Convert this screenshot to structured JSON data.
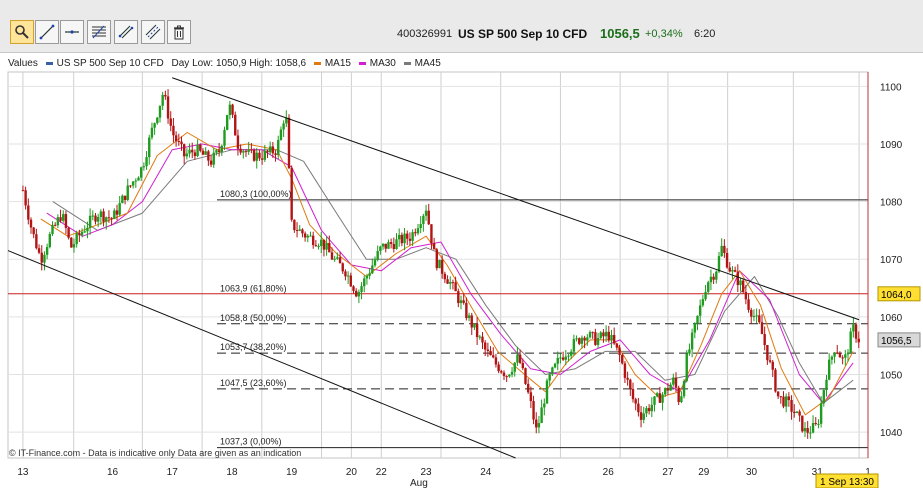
{
  "toolbar": {
    "buttons": [
      "zoom",
      "trend-line",
      "horizontal-line",
      "fibonacci-retracement",
      "channel",
      "parallel-lines",
      "delete"
    ]
  },
  "header": {
    "id": "400326991",
    "instrument": "US SP 500 Sep 10 CFD",
    "price": "1056,5",
    "change": "+0,34%",
    "time": "6:20",
    "price_color": "#1a6e1a"
  },
  "legend": {
    "values_label": "Values",
    "series_label": "US SP 500 Sep 10 CFD",
    "day_range": "Day Low: 1050,9 High: 1058,6",
    "ma15": "MA15",
    "ma30": "MA30",
    "ma45": "MA45",
    "colors": {
      "series": "#3a5ea8",
      "ma15": "#e07a10",
      "ma30": "#d020d0",
      "ma45": "#7a7a7a"
    }
  },
  "footer": {
    "copyright": "© IT-Finance.com - Data is indicative only Data are given as an indication",
    "month_label": "Aug",
    "last_time_label": "1 Sep 13:30"
  },
  "chart_data": {
    "type": "candlestick",
    "y_ticks": [
      1040,
      1050,
      1060,
      1070,
      1080,
      1090,
      1100
    ],
    "ylim": [
      1035.5,
      1102.5
    ],
    "x_ticks": [
      "13",
      "16",
      "17",
      "18",
      "19",
      "20",
      "22",
      "23",
      "24",
      "25",
      "26",
      "27",
      "29",
      "30",
      "31",
      "1"
    ],
    "last_price_label": "1056,5",
    "level_label": "1064,0",
    "level_value": 1064.0,
    "fibonacci": [
      {
        "label": "1080,3 (100,00%)",
        "value": 1080.3
      },
      {
        "label": "1063,9 (61,80%)",
        "value": 1063.9
      },
      {
        "label": "1058,8 (50,00%)",
        "value": 1058.8
      },
      {
        "label": "1053,7 (38,20%)",
        "value": 1053.7
      },
      {
        "label": "1047,5 (23,60%)",
        "value": 1047.5
      },
      {
        "label": "1037,3 (0,00%)",
        "value": 1037.3
      }
    ],
    "price_path": [
      [
        13,
        1082
      ],
      [
        13.3,
        1075
      ],
      [
        13.6,
        1070
      ],
      [
        13.9,
        1074
      ],
      [
        14.3,
        1078
      ],
      [
        14.6,
        1072
      ],
      [
        15,
        1075
      ],
      [
        15.5,
        1078
      ],
      [
        16,
        1077
      ],
      [
        16.5,
        1082
      ],
      [
        17,
        1086
      ],
      [
        17.3,
        1092
      ],
      [
        17.7,
        1099
      ],
      [
        18,
        1092
      ],
      [
        18.4,
        1088
      ],
      [
        18.8,
        1089
      ],
      [
        19.3,
        1087
      ],
      [
        19.6,
        1089
      ],
      [
        19.9,
        1097
      ],
      [
        20.2,
        1090
      ],
      [
        20.6,
        1088
      ],
      [
        21,
        1088
      ],
      [
        21.5,
        1089
      ],
      [
        21.8,
        1096
      ],
      [
        22,
        1076
      ],
      [
        22.5,
        1074
      ],
      [
        23,
        1073
      ],
      [
        23.4,
        1070
      ],
      [
        23.8,
        1068
      ],
      [
        24.2,
        1064
      ],
      [
        24.6,
        1068
      ],
      [
        25,
        1072
      ],
      [
        25.5,
        1073
      ],
      [
        26,
        1074
      ],
      [
        26.5,
        1079
      ],
      [
        26.8,
        1070
      ],
      [
        27.3,
        1066
      ],
      [
        27.7,
        1062
      ],
      [
        28.1,
        1058
      ],
      [
        28.5,
        1054
      ],
      [
        28.8,
        1052
      ],
      [
        29.2,
        1050
      ],
      [
        29.6,
        1053
      ],
      [
        30,
        1045
      ],
      [
        30.2,
        1040
      ],
      [
        30.6,
        1049
      ],
      [
        31,
        1053
      ],
      [
        31.4,
        1055
      ],
      [
        31.8,
        1057
      ],
      [
        32.2,
        1056
      ],
      [
        32.6,
        1057
      ],
      [
        33,
        1053
      ],
      [
        33.4,
        1046
      ],
      [
        33.7,
        1043
      ],
      [
        34.1,
        1045
      ],
      [
        34.5,
        1047
      ],
      [
        34.8,
        1049
      ],
      [
        35,
        1045
      ],
      [
        35.2,
        1052
      ],
      [
        35.6,
        1060
      ],
      [
        35.9,
        1066
      ],
      [
        36.2,
        1068
      ],
      [
        36.4,
        1072
      ],
      [
        36.7,
        1068
      ],
      [
        37,
        1066
      ],
      [
        37.3,
        1062
      ],
      [
        37.7,
        1058
      ],
      [
        38,
        1052
      ],
      [
        38.3,
        1046
      ],
      [
        38.6,
        1045
      ],
      [
        38.9,
        1043
      ],
      [
        39.2,
        1040
      ],
      [
        39.6,
        1041
      ],
      [
        39.9,
        1050
      ],
      [
        40.2,
        1055
      ],
      [
        40.5,
        1052
      ],
      [
        40.8,
        1058
      ],
      [
        41,
        1056
      ]
    ],
    "ma15_path": [
      [
        13.6,
        1077
      ],
      [
        14.5,
        1074
      ],
      [
        15.5,
        1076
      ],
      [
        16.5,
        1078
      ],
      [
        17.5,
        1088
      ],
      [
        18.5,
        1092
      ],
      [
        19.5,
        1089
      ],
      [
        20.5,
        1090
      ],
      [
        21.5,
        1089
      ],
      [
        22,
        1084
      ],
      [
        22.6,
        1076
      ],
      [
        23.5,
        1071
      ],
      [
        24.5,
        1067
      ],
      [
        25.5,
        1071
      ],
      [
        26.5,
        1074
      ],
      [
        27.2,
        1069
      ],
      [
        28.1,
        1061
      ],
      [
        28.9,
        1054
      ],
      [
        29.8,
        1050
      ],
      [
        30.5,
        1047
      ],
      [
        31.2,
        1052
      ],
      [
        32,
        1056
      ],
      [
        32.8,
        1056
      ],
      [
        33.5,
        1050
      ],
      [
        34.3,
        1046
      ],
      [
        35,
        1047
      ],
      [
        35.7,
        1055
      ],
      [
        36.4,
        1064
      ],
      [
        37,
        1068
      ],
      [
        37.7,
        1062
      ],
      [
        38.4,
        1051
      ],
      [
        39.2,
        1043
      ],
      [
        40,
        1046
      ],
      [
        40.8,
        1054
      ]
    ],
    "ma30_path": [
      [
        13.8,
        1078
      ],
      [
        15,
        1074
      ],
      [
        16,
        1076
      ],
      [
        17,
        1080
      ],
      [
        18,
        1089
      ],
      [
        19,
        1090
      ],
      [
        20,
        1089
      ],
      [
        21,
        1089
      ],
      [
        22,
        1086
      ],
      [
        23,
        1075
      ],
      [
        24,
        1069
      ],
      [
        25,
        1068
      ],
      [
        26,
        1072
      ],
      [
        27,
        1073
      ],
      [
        28,
        1064
      ],
      [
        29,
        1057
      ],
      [
        30,
        1051
      ],
      [
        31,
        1050
      ],
      [
        32,
        1054
      ],
      [
        33,
        1056
      ],
      [
        34,
        1050
      ],
      [
        35,
        1047
      ],
      [
        36,
        1056
      ],
      [
        37,
        1068
      ],
      [
        38,
        1063
      ],
      [
        39,
        1050
      ],
      [
        39.8,
        1045
      ],
      [
        40.8,
        1052
      ]
    ],
    "ma45_path": [
      [
        14,
        1080
      ],
      [
        15.5,
        1075
      ],
      [
        17,
        1078
      ],
      [
        18.5,
        1087
      ],
      [
        20,
        1089
      ],
      [
        21.5,
        1089
      ],
      [
        22.4,
        1087
      ],
      [
        23.5,
        1078
      ],
      [
        24.5,
        1070
      ],
      [
        25.5,
        1070
      ],
      [
        26.5,
        1072
      ],
      [
        27.5,
        1070
      ],
      [
        28.5,
        1062
      ],
      [
        29.5,
        1055
      ],
      [
        30.5,
        1050
      ],
      [
        31.5,
        1051
      ],
      [
        32.5,
        1054
      ],
      [
        33.5,
        1054
      ],
      [
        34.5,
        1049
      ],
      [
        35.5,
        1050
      ],
      [
        36.5,
        1061
      ],
      [
        37.5,
        1067
      ],
      [
        38.3,
        1060
      ],
      [
        39,
        1052
      ],
      [
        39.8,
        1045
      ],
      [
        40.8,
        1049
      ]
    ],
    "trend_lines": [
      {
        "from": [
          18,
          1101.5
        ],
        "to": [
          41,
          1059.5
        ]
      },
      {
        "from": [
          12.5,
          1071.5
        ],
        "to": [
          29.5,
          1035.5
        ]
      }
    ]
  }
}
